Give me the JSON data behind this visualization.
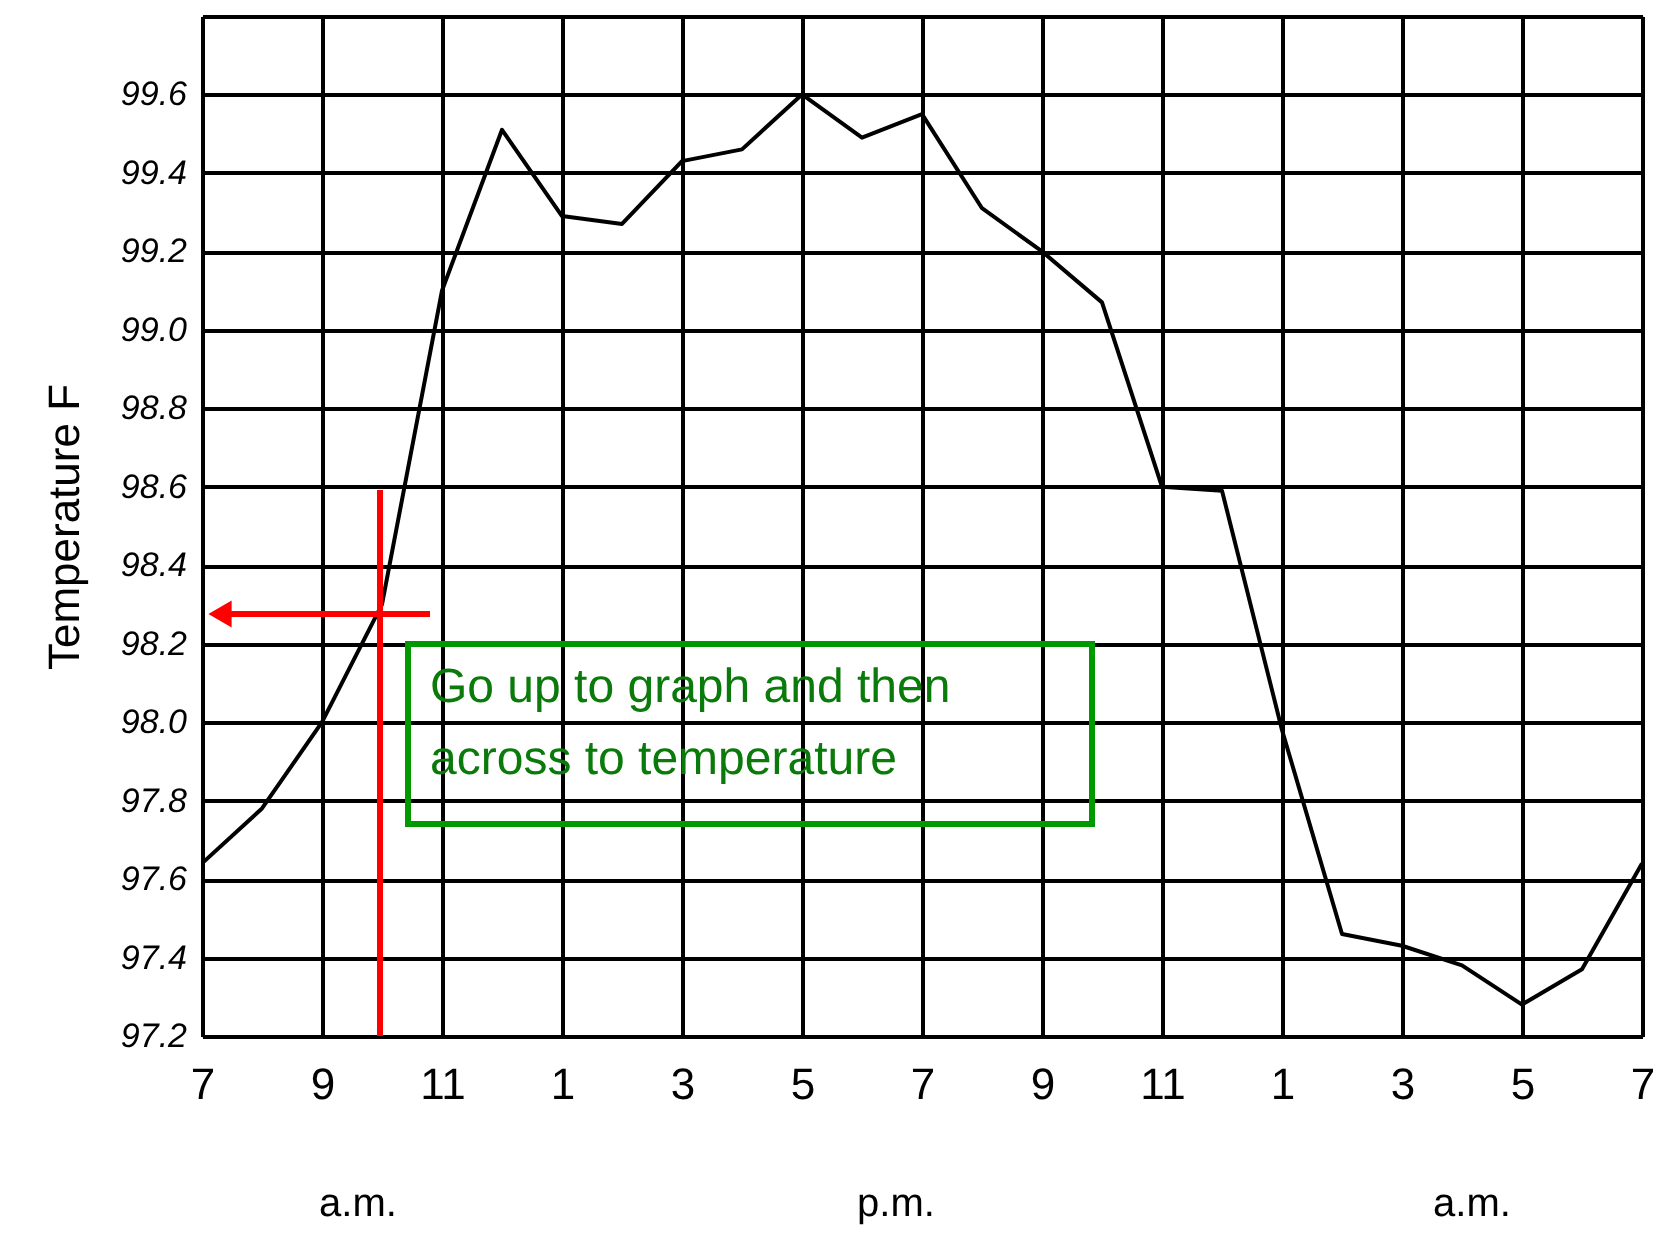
{
  "chart_data": {
    "type": "line",
    "ylabel": "Temperature  F",
    "categories": [
      "7",
      null,
      "9",
      null,
      "11",
      null,
      "1",
      null,
      "3",
      null,
      "5",
      null,
      "7",
      null,
      "9",
      null,
      "11",
      null,
      "1",
      null,
      "3",
      null,
      "5",
      null,
      "7"
    ],
    "series": [
      {
        "color": "#000000",
        "values": [
          97.64,
          97.78,
          98.0,
          98.3,
          99.1,
          99.51,
          99.29,
          99.27,
          99.43,
          99.46,
          99.6,
          99.49,
          99.55,
          99.31,
          99.2,
          99.07,
          98.6,
          98.59,
          97.98,
          97.46,
          97.43,
          97.38,
          97.28,
          97.37,
          97.64
        ]
      }
    ],
    "ylim": [
      97.2,
      99.8
    ],
    "yticks": [
      {
        "value": 97.2,
        "label": "97.2"
      },
      {
        "value": 97.4,
        "label": "97.4"
      },
      {
        "value": 97.6,
        "label": "97.6"
      },
      {
        "value": 97.8,
        "label": "97.8"
      },
      {
        "value": 98.0,
        "label": "98.0"
      },
      {
        "value": 98.2,
        "label": "98.2"
      },
      {
        "value": 98.4,
        "label": "98.4"
      },
      {
        "value": 98.6,
        "label": "98.6"
      },
      {
        "value": 98.8,
        "label": "98.8"
      },
      {
        "value": 99.0,
        "label": "99.0"
      },
      {
        "value": 99.2,
        "label": "99.2"
      },
      {
        "value": 99.4,
        "label": "99.4"
      },
      {
        "value": 99.6,
        "label": "99.6"
      },
      {
        "value": 99.8,
        "label": null
      }
    ],
    "grid": true,
    "marker": "none",
    "line_style": "solid",
    "annotations": [
      "Go up to graph and then across to temperature",
      "a.m.",
      "p.m.",
      "a.m."
    ]
  }
}
